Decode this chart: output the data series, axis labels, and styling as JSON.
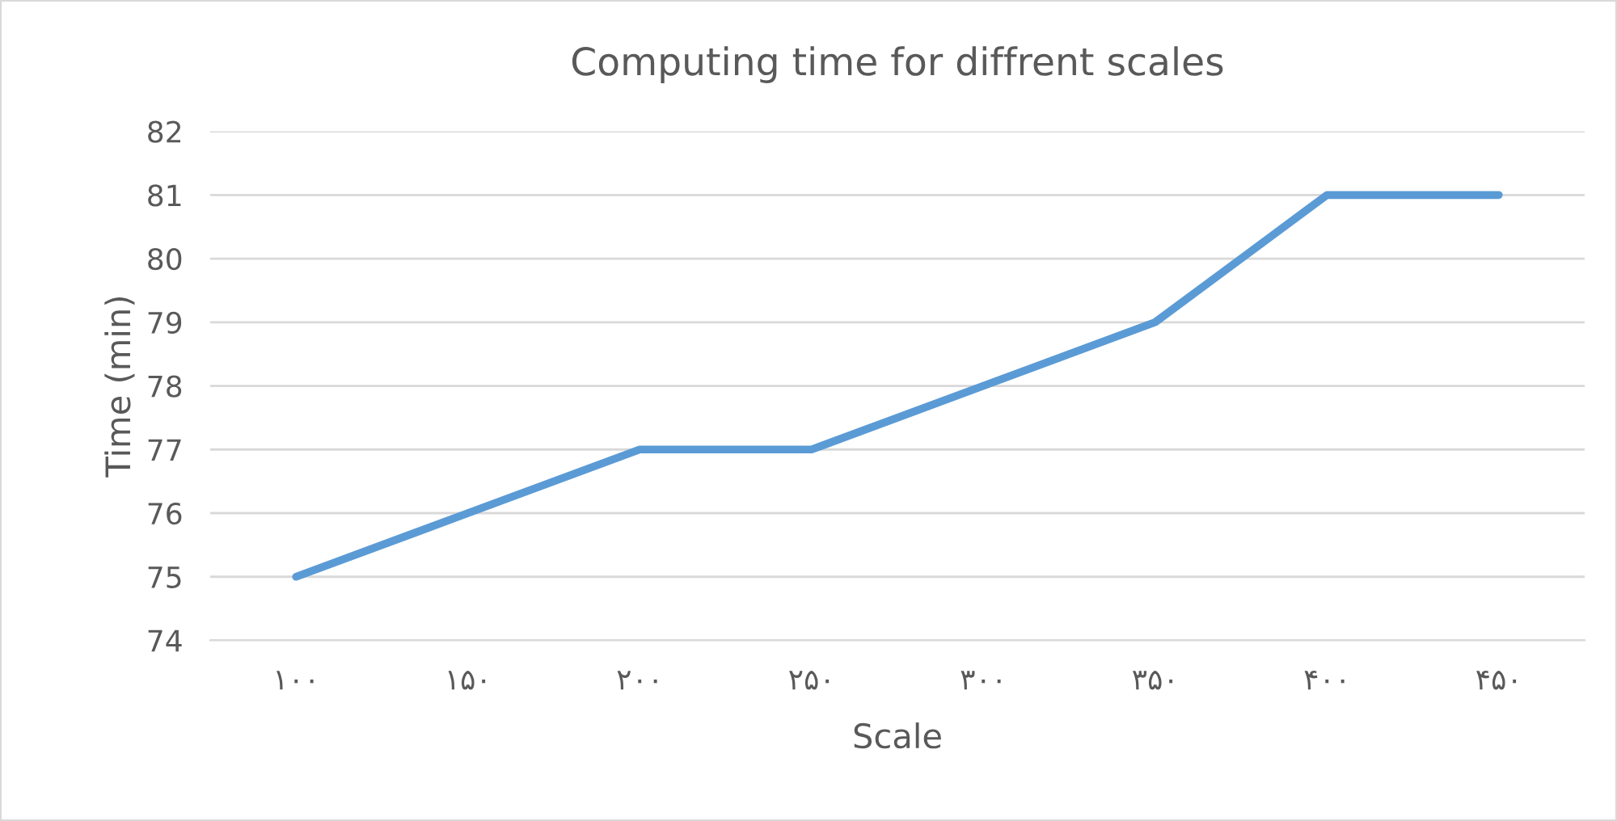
{
  "chart_data": {
    "type": "line",
    "title": "Computing time for diffrent scales",
    "xlabel": "Scale",
    "ylabel": "Time (min)",
    "categories": [
      "۱۰۰",
      "۱۵۰",
      "۲۰۰",
      "۲۵۰",
      "۳۰۰",
      "۳۵۰",
      "۴۰۰",
      "۴۵۰"
    ],
    "series": [
      {
        "color": "#5b9bd5",
        "values": [
          75,
          76,
          77,
          77,
          78,
          79,
          81,
          81
        ]
      }
    ],
    "ylim": [
      74,
      82
    ],
    "yticks": [
      74,
      75,
      76,
      77,
      78,
      79,
      80,
      81,
      82
    ],
    "grid": "y",
    "legend": false,
    "marker": "none",
    "line_style": "solid"
  }
}
